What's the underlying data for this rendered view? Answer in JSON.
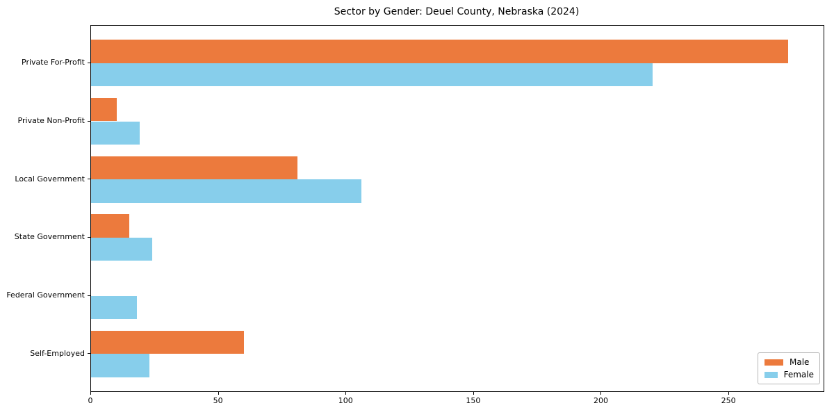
{
  "title": "Sector by Gender: Deuel County, Nebraska (2024)",
  "chart_data": {
    "type": "bar",
    "orientation": "horizontal",
    "title": "Sector by Gender: Deuel County, Nebraska (2024)",
    "categories": [
      "Private For-Profit",
      "Private Non-Profit",
      "Local Government",
      "State Government",
      "Federal Government",
      "Self-Employed"
    ],
    "series": [
      {
        "name": "Male",
        "color": "#ec7a3d",
        "values": [
          273,
          10,
          81,
          15,
          0,
          60
        ]
      },
      {
        "name": "Female",
        "color": "#87ceeb",
        "values": [
          220,
          19,
          106,
          24,
          18,
          23
        ]
      }
    ],
    "xlabel": "",
    "ylabel": "",
    "xticks": [
      0,
      50,
      100,
      150,
      200,
      250
    ],
    "xlim": [
      0,
      287
    ],
    "grid": false,
    "legend_position": "lower right",
    "bar_height_ratio": 0.4,
    "plot_border_color": "#000000",
    "background_color": "#ffffff"
  }
}
